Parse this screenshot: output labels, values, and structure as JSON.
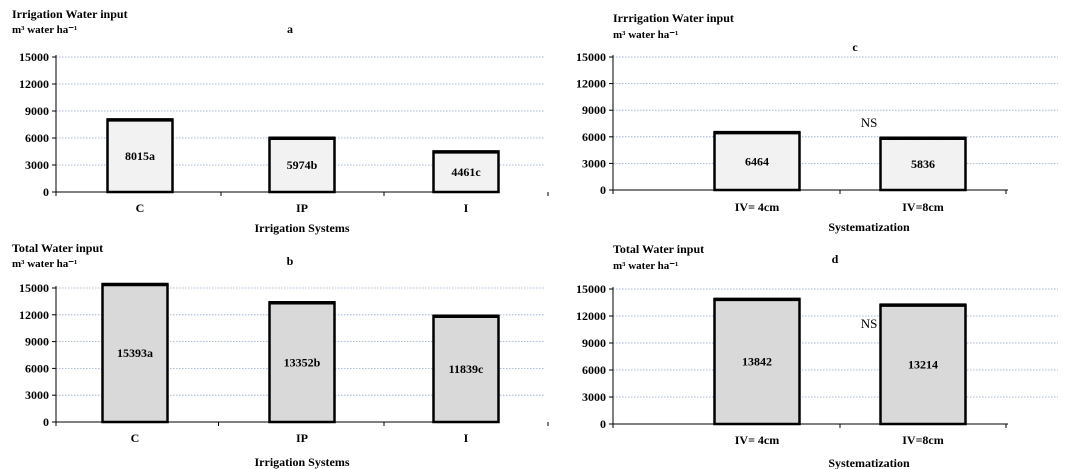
{
  "chart_data": [
    {
      "panel": "a",
      "type": "bar",
      "title": "Irrigation Water input",
      "unit": "m³ water ha⁻¹",
      "xlabel": "Irrigation Systems",
      "categories": [
        "C",
        "IP",
        "I"
      ],
      "values": [
        8015,
        5974,
        4461
      ],
      "labels": [
        "8015a",
        "5974b",
        "4461c"
      ],
      "yticks": [
        0,
        3000,
        6000,
        9000,
        12000,
        15000
      ],
      "ylim": [
        0,
        15000
      ],
      "bar_color": "#f2f2f2",
      "note": ""
    },
    {
      "panel": "b",
      "type": "bar",
      "title": "Total Water input",
      "unit": "m³ water ha⁻¹",
      "xlabel": "Irrigation Systems",
      "categories": [
        "C",
        "IP",
        "I"
      ],
      "values": [
        15393,
        13352,
        11839
      ],
      "labels": [
        "15393a",
        "13352b",
        "11839c"
      ],
      "yticks": [
        0,
        3000,
        6000,
        9000,
        12000,
        15000
      ],
      "ylim": [
        0,
        15000
      ],
      "bar_color": "#d9d9d9",
      "note": ""
    },
    {
      "panel": "c",
      "type": "bar",
      "title": "Irrrigation Water input",
      "unit": "m³ water ha⁻¹",
      "xlabel": "Systematization",
      "categories": [
        "IV= 4cm",
        "IV=8cm"
      ],
      "values": [
        6464,
        5836
      ],
      "labels": [
        "6464",
        "5836"
      ],
      "yticks": [
        0,
        3000,
        6000,
        9000,
        12000,
        15000
      ],
      "ylim": [
        0,
        15000
      ],
      "bar_color": "#f2f2f2",
      "note": "NS"
    },
    {
      "panel": "d",
      "type": "bar",
      "title": "Total Water input",
      "unit": "m³ water ha⁻¹",
      "xlabel": "Systematization",
      "categories": [
        "IV= 4cm",
        "IV=8cm"
      ],
      "values": [
        13842,
        13214
      ],
      "labels": [
        "13842",
        "13214"
      ],
      "yticks": [
        0,
        3000,
        6000,
        9000,
        12000,
        15000
      ],
      "ylim": [
        0,
        15000
      ],
      "bar_color": "#d9d9d9",
      "note": "NS"
    }
  ]
}
